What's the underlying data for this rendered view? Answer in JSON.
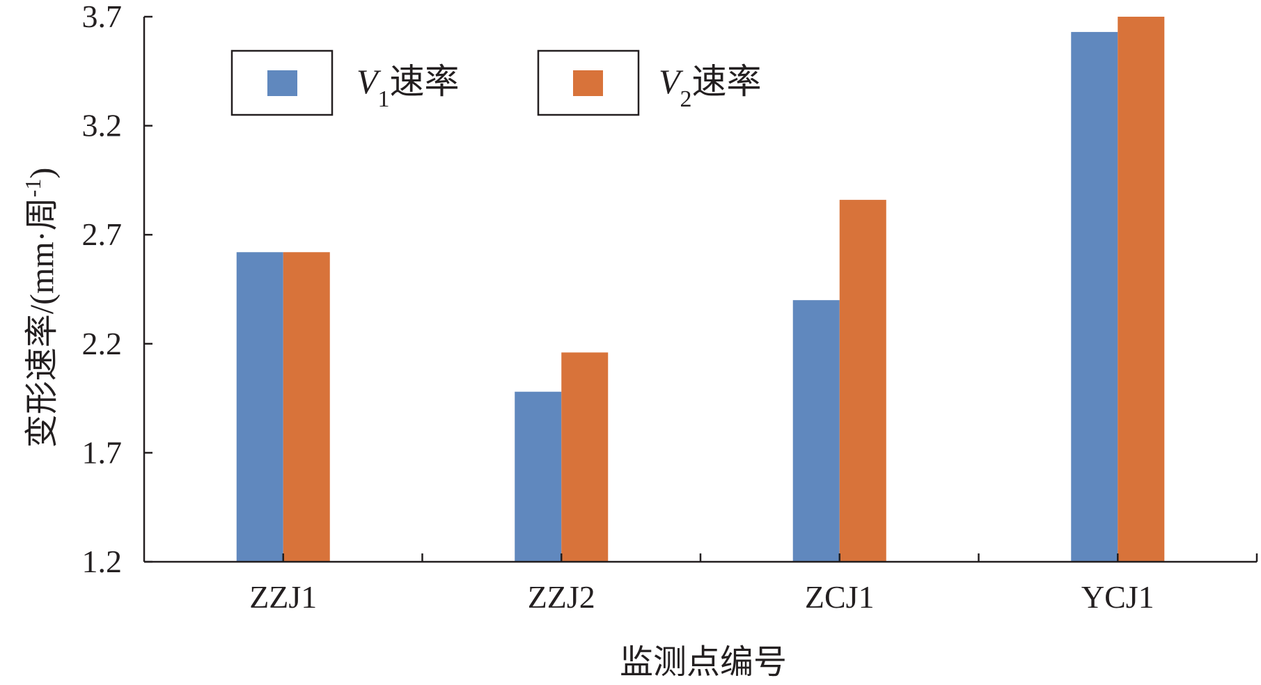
{
  "chart_data": {
    "type": "bar",
    "categories": [
      "ZZJ1",
      "ZZJ2",
      "ZCJ1",
      "YCJ1"
    ],
    "series": [
      {
        "name": "V1速率",
        "name_main": "V",
        "name_sub": "1",
        "name_suffix": "速率",
        "color": "#6088be",
        "values": [
          2.62,
          1.98,
          2.4,
          3.63
        ]
      },
      {
        "name": "V2速率",
        "name_main": "V",
        "name_sub": "2",
        "name_suffix": "速率",
        "color": "#d8733a",
        "values": [
          2.62,
          2.16,
          2.86,
          3.7
        ]
      }
    ],
    "xlabel": "监测点编号",
    "ylabel": "变形速率/(mm·周-1)",
    "ylabel_main": "变形速率/(mm·周",
    "ylabel_sup": "-1",
    "ylabel_close": ")",
    "yticks": [
      "1.2",
      "1.7",
      "2.2",
      "2.7",
      "3.2",
      "3.7"
    ],
    "ylim": [
      1.2,
      3.7
    ],
    "grid": false,
    "legend_position": "top-left"
  }
}
